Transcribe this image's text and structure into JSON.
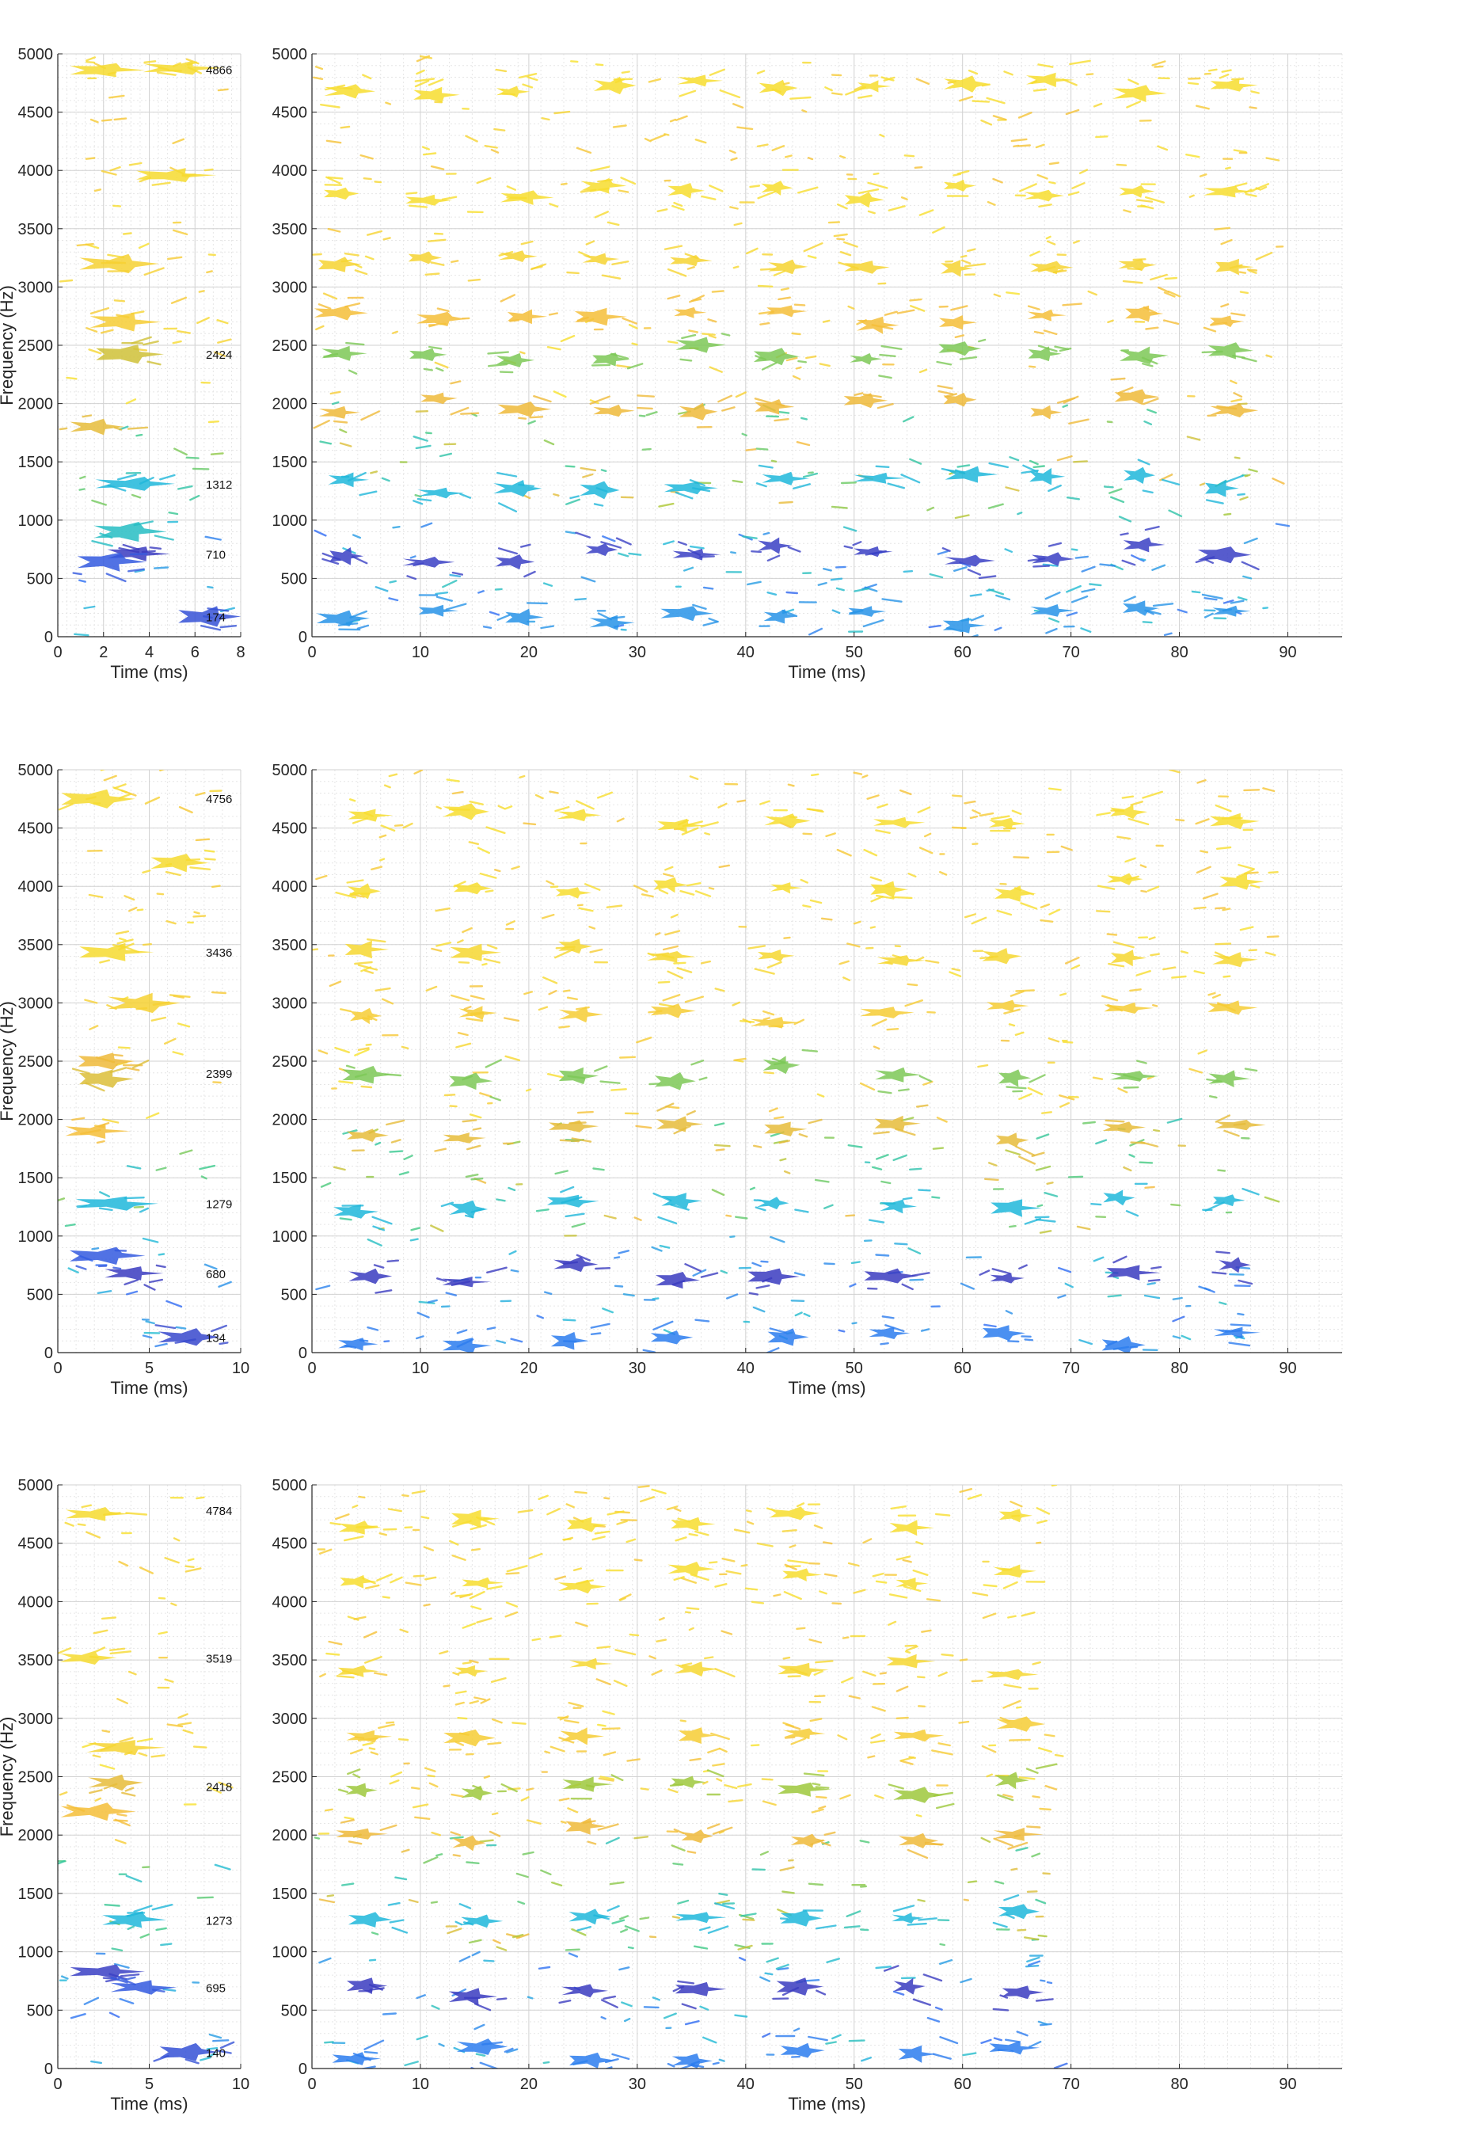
{
  "figure": {
    "description_free": true,
    "colormap": [
      "#3e26a8",
      "#2f6df5",
      "#1fb9d9",
      "#39c98a",
      "#a8c833",
      "#f5b93a",
      "#f7e82a"
    ]
  },
  "chart_data": [
    {
      "type": "scatter",
      "panel": "1-left",
      "title": "",
      "xlabel": "Time (ms)",
      "ylabel": "Frequency (Hz)",
      "xlim": [
        0,
        8
      ],
      "ylim": [
        0,
        5000
      ],
      "xticks": [
        "0",
        "2",
        "4",
        "6",
        "8"
      ],
      "yticks": [
        "0",
        "500",
        "1000",
        "1500",
        "2000",
        "2500",
        "3000",
        "3500",
        "4000",
        "4500",
        "5000"
      ],
      "grid": true,
      "peak_labels": [
        {
          "text": "4866",
          "y": 4866
        },
        {
          "text": "2424",
          "y": 2424
        },
        {
          "text": "1312",
          "y": 1312
        },
        {
          "text": "710",
          "y": 710
        },
        {
          "text": "174",
          "y": 174
        }
      ],
      "blobs": [
        {
          "x": 2.0,
          "y": 4860,
          "c": 0.95
        },
        {
          "x": 5.3,
          "y": 4880,
          "c": 0.95
        },
        {
          "x": 5.0,
          "y": 3960,
          "c": 0.95
        },
        {
          "x": 2.5,
          "y": 3200,
          "c": 0.92
        },
        {
          "x": 2.8,
          "y": 2700,
          "c": 0.9
        },
        {
          "x": 3.0,
          "y": 2424,
          "c": 0.75
        },
        {
          "x": 1.6,
          "y": 1800,
          "c": 0.8
        },
        {
          "x": 3.2,
          "y": 1312,
          "c": 0.33
        },
        {
          "x": 3.0,
          "y": 900,
          "c": 0.38
        },
        {
          "x": 3.4,
          "y": 710,
          "c": 0.05
        },
        {
          "x": 2.2,
          "y": 640,
          "c": 0.12
        },
        {
          "x": 6.5,
          "y": 174,
          "c": 0.1
        }
      ]
    },
    {
      "type": "scatter",
      "panel": "1-right",
      "title": "",
      "xlabel": "Time (ms)",
      "ylabel": "",
      "xlim": [
        0,
        95
      ],
      "ylim": [
        0,
        5000
      ],
      "xticks": [
        "0",
        "10",
        "20",
        "30",
        "40",
        "50",
        "60",
        "70",
        "80",
        "90"
      ],
      "yticks": [
        "0",
        "500",
        "1000",
        "1500",
        "2000",
        "2500",
        "3000",
        "3500",
        "4000",
        "4500",
        "5000"
      ],
      "grid": true,
      "pulse_times": [
        3,
        11,
        19,
        27,
        35,
        43,
        51.5,
        60,
        68,
        76,
        84.5
      ],
      "data_extent": [
        0,
        89
      ],
      "bands": [
        {
          "y": 4700,
          "c": 0.96
        },
        {
          "y": 3800,
          "c": 0.96
        },
        {
          "y": 3200,
          "c": 0.93
        },
        {
          "y": 2750,
          "c": 0.85
        },
        {
          "y": 2424,
          "c": 0.6
        },
        {
          "y": 2000,
          "c": 0.82
        },
        {
          "y": 1312,
          "c": 0.33
        },
        {
          "y": 710,
          "c": 0.06
        },
        {
          "y": 174,
          "c": 0.25
        }
      ]
    },
    {
      "type": "scatter",
      "panel": "2-left",
      "title": "",
      "xlabel": "Time (ms)",
      "ylabel": "Frequency (Hz)",
      "xlim": [
        0,
        10
      ],
      "ylim": [
        0,
        5000
      ],
      "xticks": [
        "0",
        "5",
        "10"
      ],
      "yticks": [
        "0",
        "500",
        "1000",
        "1500",
        "2000",
        "2500",
        "3000",
        "3500",
        "4000",
        "4500",
        "5000"
      ],
      "grid": true,
      "peak_labels": [
        {
          "text": "4756",
          "y": 4756
        },
        {
          "text": "3436",
          "y": 3436
        },
        {
          "text": "2399",
          "y": 2399
        },
        {
          "text": "1279",
          "y": 1279
        },
        {
          "text": "680",
          "y": 680
        },
        {
          "text": "134",
          "y": 134
        }
      ],
      "blobs": [
        {
          "x": 2.0,
          "y": 4750,
          "c": 0.95
        },
        {
          "x": 6.5,
          "y": 4200,
          "c": 0.95
        },
        {
          "x": 3.0,
          "y": 3436,
          "c": 0.95
        },
        {
          "x": 4.5,
          "y": 3000,
          "c": 0.92
        },
        {
          "x": 2.5,
          "y": 2500,
          "c": 0.82
        },
        {
          "x": 2.5,
          "y": 2350,
          "c": 0.78
        },
        {
          "x": 2.0,
          "y": 1900,
          "c": 0.85
        },
        {
          "x": 3.0,
          "y": 1279,
          "c": 0.33
        },
        {
          "x": 4.0,
          "y": 680,
          "c": 0.05
        },
        {
          "x": 2.5,
          "y": 830,
          "c": 0.12
        },
        {
          "x": 7.0,
          "y": 134,
          "c": 0.08
        }
      ]
    },
    {
      "type": "scatter",
      "panel": "2-right",
      "title": "",
      "xlabel": "Time (ms)",
      "ylabel": "",
      "xlim": [
        0,
        95
      ],
      "ylim": [
        0,
        5000
      ],
      "xticks": [
        "0",
        "10",
        "20",
        "30",
        "40",
        "50",
        "60",
        "70",
        "80",
        "90"
      ],
      "yticks": [
        "0",
        "500",
        "1000",
        "1500",
        "2000",
        "2500",
        "3000",
        "3500",
        "4000",
        "4500",
        "5000"
      ],
      "grid": true,
      "pulse_times": [
        4.5,
        14.5,
        24,
        33.5,
        43,
        53.5,
        64,
        75,
        85
      ],
      "data_extent": [
        0,
        89
      ],
      "bands": [
        {
          "y": 4600,
          "c": 0.96
        },
        {
          "y": 4000,
          "c": 0.96
        },
        {
          "y": 3436,
          "c": 0.94
        },
        {
          "y": 2900,
          "c": 0.9
        },
        {
          "y": 2399,
          "c": 0.6
        },
        {
          "y": 1900,
          "c": 0.8
        },
        {
          "y": 1279,
          "c": 0.33
        },
        {
          "y": 680,
          "c": 0.05
        },
        {
          "y": 134,
          "c": 0.2
        }
      ]
    },
    {
      "type": "scatter",
      "panel": "3-left",
      "title": "",
      "xlabel": "Time (ms)",
      "ylabel": "Frequency (Hz)",
      "xlim": [
        0,
        10
      ],
      "ylim": [
        0,
        5000
      ],
      "xticks": [
        "0",
        "5",
        "10"
      ],
      "yticks": [
        "0",
        "500",
        "1000",
        "1500",
        "2000",
        "2500",
        "3000",
        "3500",
        "4000",
        "4500",
        "5000"
      ],
      "grid": true,
      "peak_labels": [
        {
          "text": "4784",
          "y": 4784
        },
        {
          "text": "3519",
          "y": 3519
        },
        {
          "text": "2418",
          "y": 2418
        },
        {
          "text": "1273",
          "y": 1273
        },
        {
          "text": "695",
          "y": 695
        },
        {
          "text": "140",
          "y": 140
        }
      ],
      "blobs": [
        {
          "x": 2.0,
          "y": 4750,
          "c": 0.95
        },
        {
          "x": 1.5,
          "y": 3519,
          "c": 0.95
        },
        {
          "x": 3.5,
          "y": 2750,
          "c": 0.93
        },
        {
          "x": 3.0,
          "y": 2450,
          "c": 0.8
        },
        {
          "x": 2.0,
          "y": 2200,
          "c": 0.85
        },
        {
          "x": 4.0,
          "y": 1273,
          "c": 0.33
        },
        {
          "x": 2.5,
          "y": 830,
          "c": 0.06
        },
        {
          "x": 4.5,
          "y": 695,
          "c": 0.12
        },
        {
          "x": 7.0,
          "y": 140,
          "c": 0.1
        }
      ]
    },
    {
      "type": "scatter",
      "panel": "3-right",
      "title": "",
      "xlabel": "Time (ms)",
      "ylabel": "",
      "xlim": [
        0,
        95
      ],
      "ylim": [
        0,
        5000
      ],
      "xticks": [
        "0",
        "10",
        "20",
        "30",
        "40",
        "50",
        "60",
        "70",
        "80",
        "90"
      ],
      "yticks": [
        "0",
        "500",
        "1000",
        "1500",
        "2000",
        "2500",
        "3000",
        "3500",
        "4000",
        "4500",
        "5000"
      ],
      "grid": true,
      "pulse_times": [
        4.5,
        15,
        25,
        35,
        45,
        55.5,
        65
      ],
      "data_extent": [
        0,
        69
      ],
      "bands": [
        {
          "y": 4700,
          "c": 0.96
        },
        {
          "y": 4200,
          "c": 0.96
        },
        {
          "y": 3450,
          "c": 0.94
        },
        {
          "y": 2900,
          "c": 0.9
        },
        {
          "y": 2418,
          "c": 0.65
        },
        {
          "y": 2000,
          "c": 0.82
        },
        {
          "y": 1273,
          "c": 0.33
        },
        {
          "y": 695,
          "c": 0.05
        },
        {
          "y": 140,
          "c": 0.2
        }
      ]
    }
  ]
}
